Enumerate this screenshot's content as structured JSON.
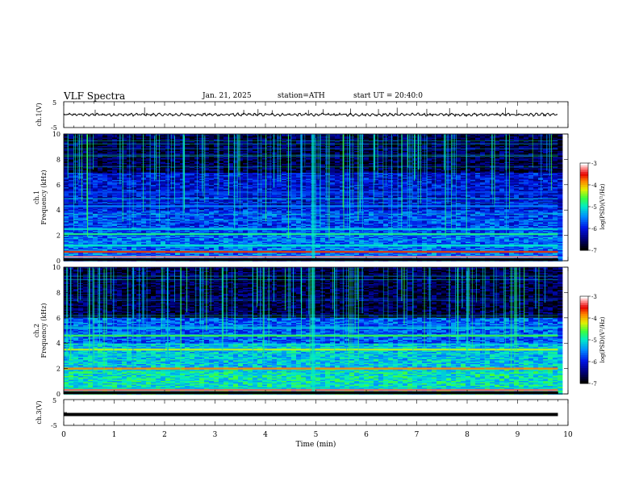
{
  "header": {
    "title": "VLF  Spectra",
    "date": "Jan. 21, 2025",
    "station": "station=ATH",
    "start": "start  UT  =   20:40:0"
  },
  "chart_data": [
    {
      "type": "line",
      "title": "",
      "ylabel": "ch.1(V)",
      "xlabel": "",
      "xlim": [
        0,
        10
      ],
      "ylim": [
        -5,
        5
      ],
      "yticks": [
        "5",
        "-5"
      ],
      "series": [
        {
          "baseline": 0,
          "amplitude": 0.5
        }
      ],
      "color": "#000000"
    },
    {
      "type": "heatmap",
      "title": "",
      "ylabel_top": "ch.1",
      "ylabel": "Frequency  (kHz)",
      "xlim": [
        0,
        9.8
      ],
      "ylim": [
        0,
        10
      ],
      "yticks": [
        "0",
        "2",
        "4",
        "6",
        "8",
        "10"
      ],
      "colorbar": {
        "label": "log(PSD)(V²/Hz)",
        "range": [
          -7,
          -3
        ],
        "ticks": [
          "-3",
          "-4",
          "-5",
          "-6",
          "-7"
        ]
      },
      "bands": [
        {
          "freq_khz": 0.3,
          "level": -3.2
        },
        {
          "freq_khz": 0.7,
          "level": -3.6
        },
        {
          "freq_khz": 1.2,
          "level": -5.0
        },
        {
          "freq_khz": 2.1,
          "level": -4.8
        },
        {
          "freq_khz": 2.5,
          "level": -5.1
        },
        {
          "freq_khz": 4.3,
          "level": -5.5
        },
        {
          "freq_khz": 5.4,
          "level": -5.8
        }
      ],
      "background_levels": [
        {
          "freq_range": [
            0,
            2
          ],
          "level": -5.6
        },
        {
          "freq_range": [
            2,
            4
          ],
          "level": -5.8
        },
        {
          "freq_range": [
            4,
            7
          ],
          "level": -6.1
        },
        {
          "freq_range": [
            7,
            10
          ],
          "level": -6.7
        }
      ],
      "sferics_level": -5.0,
      "event_minute": 4.95
    },
    {
      "type": "heatmap",
      "title": "",
      "ylabel_top": "ch.2",
      "ylabel": "Frequency  (kHz)",
      "xlim": [
        0,
        9.8
      ],
      "ylim": [
        0,
        10
      ],
      "yticks": [
        "0",
        "2",
        "4",
        "6",
        "8",
        "10"
      ],
      "colorbar": {
        "label": "log(PSD)(V²/Hz)",
        "range": [
          -7,
          -3
        ],
        "ticks": [
          "-3",
          "-4",
          "-5",
          "-6",
          "-7"
        ]
      },
      "bands": [
        {
          "freq_khz": 0.3,
          "level": -3.3
        },
        {
          "freq_khz": 2.0,
          "level": -3.8
        },
        {
          "freq_khz": 3.5,
          "level": -4.3
        },
        {
          "freq_khz": 4.6,
          "level": -4.6
        },
        {
          "freq_khz": 5.2,
          "level": -5.2
        }
      ],
      "background_levels": [
        {
          "freq_range": [
            0,
            2
          ],
          "level": -5.0
        },
        {
          "freq_range": [
            2,
            4
          ],
          "level": -5.2
        },
        {
          "freq_range": [
            4,
            6
          ],
          "level": -5.7
        },
        {
          "freq_range": [
            6,
            10
          ],
          "level": -6.7
        }
      ],
      "sferics_level": -5.0,
      "event_minute": 4.95
    },
    {
      "type": "line",
      "title": "",
      "ylabel": "ch.3(V)",
      "xlabel": "Time  (min)",
      "xlim": [
        0,
        10
      ],
      "ylim": [
        -5,
        5
      ],
      "xticks": [
        "0",
        "1",
        "2",
        "3",
        "4",
        "5",
        "6",
        "7",
        "8",
        "9",
        "10"
      ],
      "yticks": [
        "5",
        "-5"
      ],
      "series": [
        {
          "baseline": -0.8,
          "amplitude": 0
        }
      ],
      "color": "#000000"
    }
  ]
}
